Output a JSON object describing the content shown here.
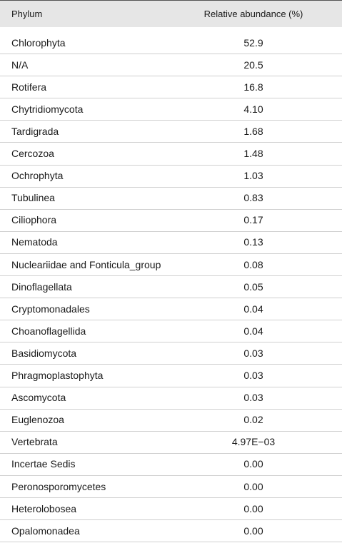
{
  "table": {
    "header": [
      "Phylum",
      "Relative abundance (%)"
    ],
    "rows": [
      [
        "Chlorophyta",
        "52.9"
      ],
      [
        "N/A",
        "20.5"
      ],
      [
        "Rotifera",
        "16.8"
      ],
      [
        "Chytridiomycota",
        "4.10"
      ],
      [
        "Tardigrada",
        "1.68"
      ],
      [
        "Cercozoa",
        "1.48"
      ],
      [
        "Ochrophyta",
        "1.03"
      ],
      [
        "Tubulinea",
        "0.83"
      ],
      [
        "Ciliophora",
        "0.17"
      ],
      [
        "Nematoda",
        "0.13"
      ],
      [
        "Nucleariidae and Fonticula_group",
        "0.08"
      ],
      [
        "Dinoflagellata",
        "0.05"
      ],
      [
        "Cryptomonadales",
        "0.04"
      ],
      [
        "Choanoflagellida",
        "0.04"
      ],
      [
        "Basidiomycota",
        "0.03"
      ],
      [
        "Phragmoplastophyta",
        "0.03"
      ],
      [
        "Ascomycota",
        "0.03"
      ],
      [
        "Euglenozoa",
        "0.02"
      ],
      [
        "Vertebrata",
        "4.97E−03"
      ],
      [
        "Incertae Sedis",
        "0.00"
      ],
      [
        "Peronosporomycetes",
        "0.00"
      ],
      [
        "Heterolobosea",
        "0.00"
      ],
      [
        "Opalomonadea",
        "0.00"
      ]
    ]
  }
}
